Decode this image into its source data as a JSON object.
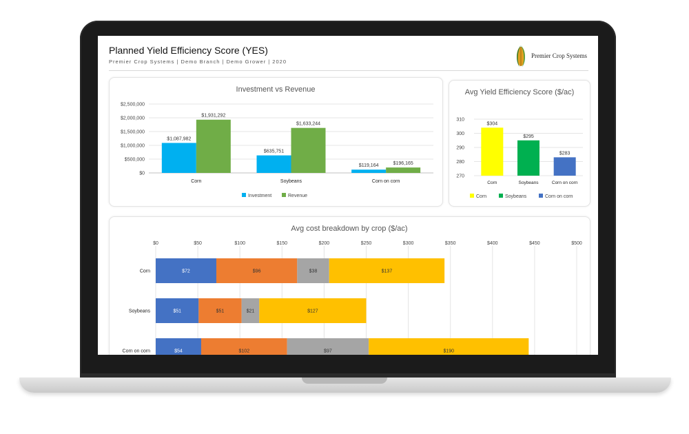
{
  "header": {
    "title": "Planned Yield Efficiency Score (YES)",
    "subtitle": "Premier Crop Systems | Demo Branch | Demo Grower | 2020",
    "logo_text": "Premier Crop Systems"
  },
  "colors": {
    "investment": "#00b0f0",
    "revenue": "#70ad47",
    "yes_corn": "#ffff00",
    "yes_soybeans": "#00b050",
    "yes_coc": "#4472c4",
    "cost_1": "#4472c4",
    "cost_2": "#ed7d31",
    "cost_3": "#a5a5a5",
    "cost_4": "#ffc000"
  },
  "chart_data": [
    {
      "type": "bar",
      "title": "Investment vs Revenue",
      "categories": [
        "Corn",
        "Soybeans",
        "Corn on corn"
      ],
      "series": [
        {
          "name": "Investment",
          "values": [
            1087982,
            635751,
            119164
          ],
          "labels": [
            "$1,087,982",
            "$635,751",
            "$119,164"
          ]
        },
        {
          "name": "Revenue",
          "values": [
            1931292,
            1633244,
            196165
          ],
          "labels": [
            "$1,931,292",
            "$1,633,244",
            "$196,165"
          ]
        }
      ],
      "yticks": [
        "$0",
        "$500,000",
        "$1,000,000",
        "$1,500,000",
        "$2,000,000",
        "$2,500,000"
      ],
      "ylim": [
        0,
        2500000
      ],
      "legend": "bottom",
      "grid": true
    },
    {
      "type": "bar",
      "title": "Avg Yield Efficiency Score ($/ac)",
      "categories": [
        "Corn",
        "Soybeans",
        "Corn on corn"
      ],
      "values": [
        304,
        295,
        283
      ],
      "labels": [
        "$304",
        "$295",
        "$283"
      ],
      "yticks": [
        "270",
        "280",
        "290",
        "300",
        "310"
      ],
      "ylim": [
        270,
        310
      ],
      "legend": "bottom",
      "grid": true
    },
    {
      "type": "bar",
      "orientation": "horizontal",
      "stacked": true,
      "title": "Avg cost breakdown by crop ($/ac)",
      "categories": [
        "Corn",
        "Soybeans",
        "Corn on corn"
      ],
      "series": [
        {
          "values": [
            72,
            51,
            54
          ],
          "labels": [
            "$72",
            "$51",
            "$54"
          ]
        },
        {
          "values": [
            96,
            51,
            102
          ],
          "labels": [
            "$96",
            "$51",
            "$102"
          ]
        },
        {
          "values": [
            38,
            21,
            97
          ],
          "labels": [
            "$38",
            "$21",
            "$97"
          ]
        },
        {
          "values": [
            137,
            127,
            190
          ],
          "labels": [
            "$137",
            "$127",
            "$190"
          ]
        }
      ],
      "xticks": [
        "$0",
        "$50",
        "$100",
        "$150",
        "$200",
        "$250",
        "$300",
        "$350",
        "$400",
        "$450",
        "$500"
      ],
      "xlim": [
        0,
        500
      ],
      "grid": true
    }
  ]
}
